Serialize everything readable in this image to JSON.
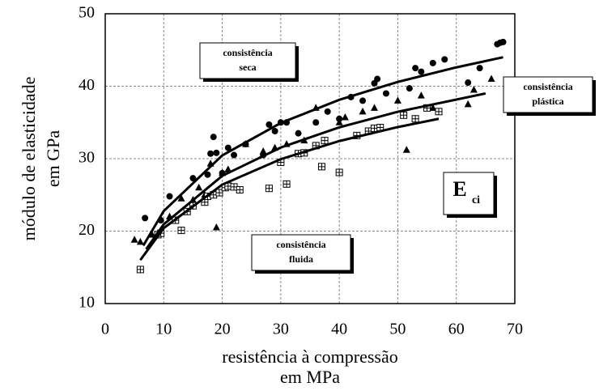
{
  "chart_data": {
    "type": "scatter",
    "xlabel": [
      "resistência à compressão",
      "em MPa"
    ],
    "ylabel": [
      "módulo de elasticidade",
      "em GPa"
    ],
    "xlim": [
      0,
      70
    ],
    "xticks": [
      0,
      10,
      20,
      30,
      40,
      50,
      60,
      70
    ],
    "ylim": [
      10,
      50
    ],
    "yticks": [
      10,
      20,
      30,
      40,
      50
    ],
    "grid": true,
    "annotations": [
      {
        "lines": [
          "consistência",
          "seca"
        ]
      },
      {
        "lines": [
          "consistência",
          "plástica"
        ]
      },
      {
        "lines": [
          "consistência",
          "fluida"
        ]
      },
      {
        "text": "E",
        "subscript": "ci"
      }
    ],
    "series": [
      {
        "marker": "circle",
        "color": "#000000",
        "x": [
          6.8,
          9.5,
          11,
          15,
          17.5,
          18,
          18.5,
          19,
          20,
          21,
          22,
          24,
          27,
          28,
          29,
          30,
          31,
          33,
          36,
          38,
          40,
          42,
          44,
          46,
          46.5,
          48,
          52,
          53,
          54,
          56,
          58,
          62,
          64,
          67,
          67.5,
          68
        ],
        "values": [
          21.8,
          21.5,
          24.8,
          27.3,
          27.8,
          30.7,
          33,
          30.8,
          28,
          31.5,
          30.5,
          32,
          30.5,
          34.7,
          33.8,
          35,
          35,
          33.5,
          35,
          36.5,
          35.5,
          38.5,
          38,
          40.4,
          41,
          39,
          39.7,
          42.5,
          42,
          43.2,
          43.7,
          40.5,
          42.5,
          45.8,
          46,
          46.1
        ]
      },
      {
        "marker": "triangle",
        "color": "#000000",
        "x": [
          5,
          6,
          8,
          11,
          13,
          15,
          16,
          17,
          18,
          19,
          20,
          21,
          24,
          27,
          29,
          31,
          34,
          36,
          40,
          41,
          44,
          46,
          50,
          51.5,
          54,
          56,
          62,
          63,
          66
        ],
        "values": [
          18.8,
          18.5,
          19.5,
          22,
          24.5,
          24.3,
          26,
          25,
          29.3,
          20.5,
          28,
          28.5,
          32,
          31,
          31.5,
          32,
          32.5,
          37,
          35,
          35.7,
          36.5,
          37,
          38,
          31.2,
          38.7,
          37,
          37.5,
          39.5,
          41
        ]
      },
      {
        "marker": "square",
        "color": "#000000",
        "x": [
          6,
          9,
          9.5,
          12,
          13,
          14,
          15,
          17,
          17.5,
          18.5,
          19.5,
          20.5,
          21,
          22,
          23,
          28,
          30,
          31,
          33,
          34,
          36,
          37,
          37.5,
          40,
          43,
          45,
          46,
          47,
          51,
          53,
          55,
          57
        ],
        "values": [
          14.7,
          19.5,
          19.7,
          21.5,
          20.1,
          22.7,
          23.5,
          24,
          24.8,
          25,
          25.3,
          26,
          26.2,
          26.1,
          25.7,
          25.9,
          29.5,
          26.5,
          30.7,
          30.8,
          31.8,
          28.9,
          32.5,
          28.1,
          33.2,
          33.8,
          34.2,
          34.3,
          36,
          35.5,
          37,
          36.5
        ]
      },
      {
        "marker": "line",
        "color": "#000000",
        "x": [
          6.5,
          10,
          20,
          30,
          40,
          50,
          60,
          68
        ],
        "values": [
          18,
          22.77,
          30.45,
          34.93,
          38.12,
          40.59,
          42.6,
          44
        ]
      },
      {
        "marker": "line",
        "color": "#000000",
        "x": [
          7,
          10,
          20,
          30,
          40,
          50,
          65
        ],
        "values": [
          17.5,
          20.94,
          27.63,
          31.54,
          34.32,
          36.47,
          39
        ]
      },
      {
        "marker": "line",
        "color": "#000000",
        "x": [
          6,
          10,
          20,
          30,
          40,
          50,
          57
        ],
        "values": [
          16,
          20.42,
          26.42,
          29.93,
          32.43,
          34.36,
          35.5
        ]
      }
    ]
  }
}
